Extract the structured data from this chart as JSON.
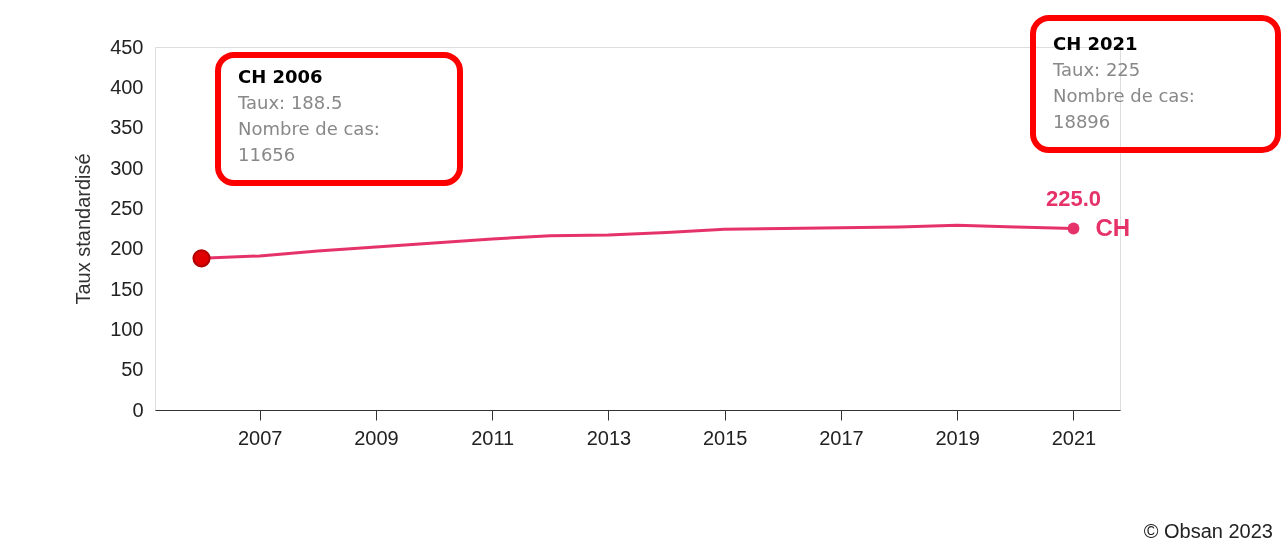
{
  "chart_data": {
    "type": "line",
    "ylabel": "Taux standardisé",
    "x": [
      2006,
      2007,
      2008,
      2009,
      2010,
      2011,
      2012,
      2013,
      2014,
      2015,
      2016,
      2017,
      2018,
      2019,
      2020,
      2021
    ],
    "series": [
      {
        "name": "CH",
        "color": "#e5336a",
        "values": [
          188,
          191,
          197,
          202,
          207,
          212,
          216,
          217,
          220,
          224,
          225,
          226,
          227,
          229,
          227,
          225
        ],
        "value_labels": [
          null,
          null,
          null,
          null,
          null,
          null,
          null,
          null,
          null,
          null,
          null,
          null,
          null,
          null,
          null,
          "225.0"
        ]
      }
    ],
    "xlim": [
      2005.2,
      2021.8
    ],
    "xticks": [
      2007,
      2009,
      2011,
      2013,
      2015,
      2017,
      2019,
      2021
    ],
    "ylim": [
      0,
      450
    ],
    "yticks": [
      0,
      50,
      100,
      150,
      200,
      250,
      300,
      350,
      400,
      450
    ],
    "grid": false,
    "legend": false,
    "marker": "none",
    "line_style": "solid",
    "annotations": [
      "CH 2006\nTaux: 188.5\nNombre de cas:\n11656",
      "CH 2021\nTaux: 225\nNombre de cas:\n18896",
      "© Obsan 2023"
    ]
  }
}
